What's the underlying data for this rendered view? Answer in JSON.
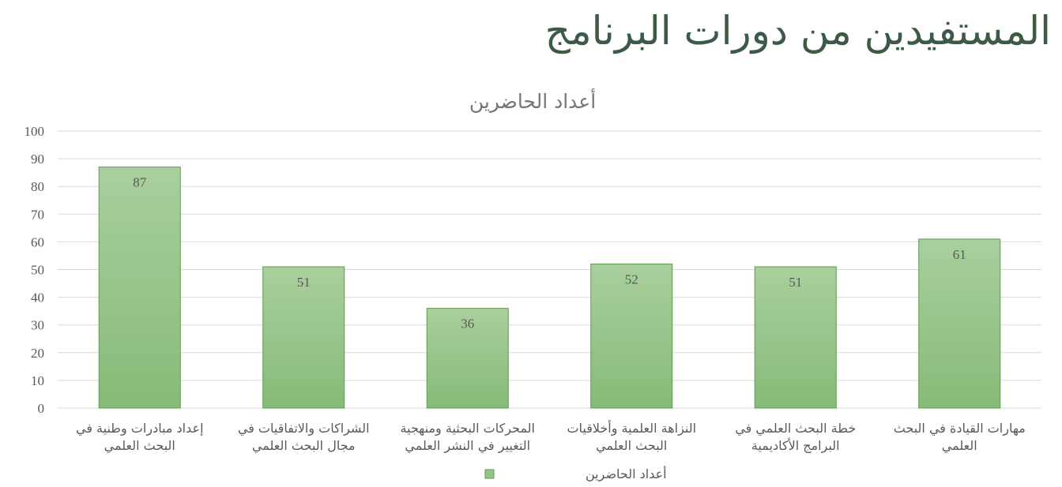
{
  "page": {
    "title": "المستفيدين من دورات البرنامج"
  },
  "chart_data": {
    "type": "bar",
    "title": "أعداد الحاضرين",
    "categories": [
      [
        "إعداد مبادرات وطنية في",
        "البحث العلمي"
      ],
      [
        "الشراكات والاتفاقيات في",
        "مجال البحث العلمي"
      ],
      [
        "المحركات البحثية ومنهجية",
        "التغيير في النشر العلمي"
      ],
      [
        "النزاهة العلمية وأخلاقيات",
        "البحث العلمي"
      ],
      [
        "خطة البحث العلمي في",
        "البرامج الأكاديمية"
      ],
      [
        "مهارات القيادة في البحث",
        "العلمي"
      ]
    ],
    "series": [
      {
        "name": "أعداد الحاضرين",
        "values": [
          87,
          51,
          36,
          52,
          51,
          61
        ]
      }
    ],
    "ylim": [
      0,
      100
    ],
    "yticks": [
      0,
      10,
      20,
      30,
      40,
      50,
      60,
      70,
      80,
      90,
      100
    ],
    "grid": true,
    "legend": "bottom",
    "data_labels": "inside-end",
    "colors": {
      "bar_top": "#a9cf9d",
      "bar_bottom": "#86bb78",
      "bar_border": "#5f9a4f",
      "grid": "#d9d9d9",
      "title_green": "#3c5a46"
    }
  }
}
